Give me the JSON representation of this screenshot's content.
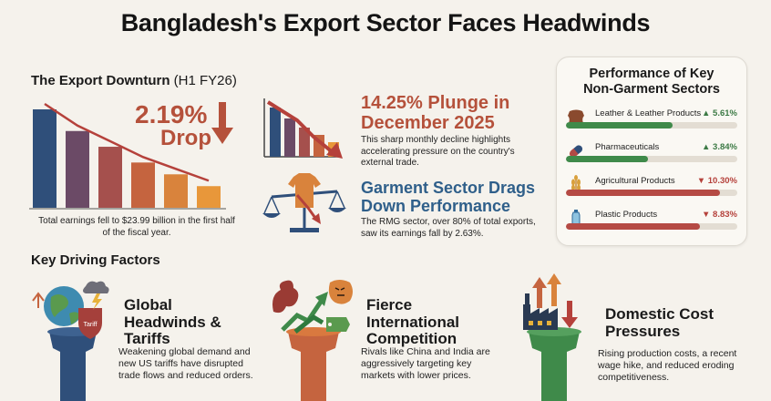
{
  "title": "Bangladesh's Export Sector Faces Headwinds",
  "downturn": {
    "heading": "The Export Downturn",
    "heading_suffix": "(H1 FY26)",
    "drop_pct": "2.19%",
    "drop_word": "Drop",
    "caption": "Total earnings fell to $23.99 billion in the first half of the fiscal year.",
    "bar_levels": [
      1.0,
      0.78,
      0.62,
      0.46,
      0.34,
      0.22
    ],
    "bar_colors": [
      "#2f4f7a",
      "#6b4a66",
      "#a5504d",
      "#c5643f",
      "#d9833c",
      "#e8973a"
    ]
  },
  "plunge": {
    "headline": "14.25% Plunge in December 2025",
    "body": "This sharp monthly decline highlights accelerating pressure on the country's external trade."
  },
  "garment": {
    "headline": "Garment Sector Drags Down Performance",
    "body": "The RMG sector, over 80% of total exports, saw its earnings fall by 2.63%."
  },
  "sectors_panel": {
    "title": "Performance of Key Non-Garment Sectors",
    "sectors": [
      {
        "name": "Leather & Leather Products",
        "value": "▲ 5.61%",
        "direction": "up",
        "fill": 0.62,
        "color": "#3f8a4a",
        "icon": "leather-hide-icon"
      },
      {
        "name": "Pharmaceuticals",
        "value": "▲ 3.84%",
        "direction": "up",
        "fill": 0.48,
        "color": "#3f8a4a",
        "icon": "pill-capsule-icon"
      },
      {
        "name": "Agricultural Products",
        "value": "▼ 10.30%",
        "direction": "down",
        "fill": 0.9,
        "color": "#b54a44",
        "icon": "wheat-icon"
      },
      {
        "name": "Plastic Products",
        "value": "▼ 8.83%",
        "direction": "down",
        "fill": 0.78,
        "color": "#b54a44",
        "icon": "plastic-bottle-icon"
      }
    ]
  },
  "factors": {
    "heading": "Key Driving Factors",
    "items": [
      {
        "title": "Global Headwinds & Tariffs",
        "body": "Weakening global demand and new US tariffs have disrupted trade flows and reduced orders.",
        "shield_label": "Tariff"
      },
      {
        "title": "Fierce International Competition",
        "body": "Rivals like China and India are aggressively targeting key markets with lower prices."
      },
      {
        "title": "Domestic Cost Pressures",
        "body": "Rising production costs, a recent wage hike, and reduced eroding competitiveness."
      }
    ]
  },
  "colors": {
    "accent_red": "#b5513b",
    "navy": "#2f4f7a",
    "green": "#3f8a4a",
    "orange": "#c5643f"
  }
}
